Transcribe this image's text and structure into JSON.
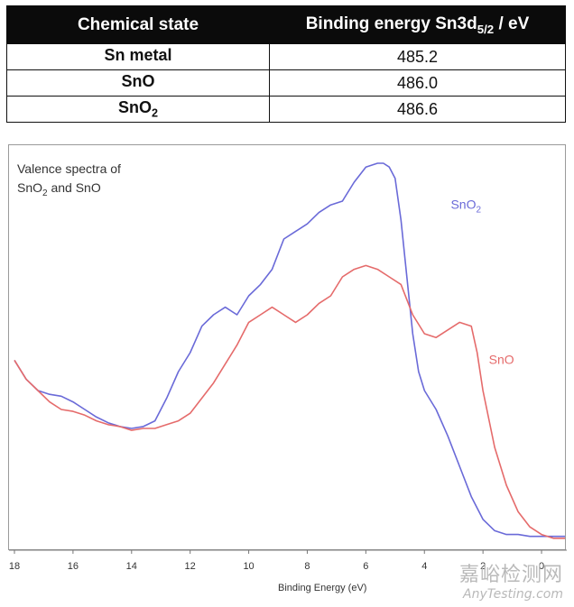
{
  "table": {
    "header_state": "Chemical state",
    "header_energy_prefix": "Binding energy Sn3d",
    "header_energy_sub": "5/2",
    "header_energy_suffix": " / eV",
    "rows": [
      {
        "state": "Sn metal",
        "state_sub": "",
        "energy": "485.2"
      },
      {
        "state": "SnO",
        "state_sub": "",
        "energy": "486.0"
      },
      {
        "state": "SnO",
        "state_sub": "2",
        "energy": "486.6"
      }
    ]
  },
  "chart_data": {
    "type": "line",
    "title_line1": "Valence spectra of",
    "title_line2_a": "SnO",
    "title_line2_sub": "2",
    "title_line2_b": " and SnO",
    "xlabel": "Binding Energy (eV)",
    "xlim": [
      18,
      -0.8
    ],
    "ylim": [
      0,
      1
    ],
    "x_ticks": [
      18,
      16,
      14,
      12,
      10,
      8,
      6,
      4,
      2,
      0
    ],
    "x_tick_labels": [
      "18",
      "16",
      "14",
      "12",
      "10",
      "8",
      "6",
      "4",
      "2",
      "0"
    ],
    "series": [
      {
        "name": "SnO2",
        "label_main": "SnO",
        "label_sub": "2",
        "label_x": 3.1,
        "label_y": 0.88,
        "color": "#6a6ad8",
        "x": [
          18,
          17.6,
          17.2,
          16.8,
          16.4,
          16,
          15.6,
          15.2,
          14.8,
          14.4,
          14,
          13.6,
          13.2,
          12.8,
          12.4,
          12,
          11.6,
          11.2,
          10.8,
          10.4,
          10,
          9.6,
          9.2,
          8.8,
          8.4,
          8,
          7.6,
          7.2,
          6.8,
          6.4,
          6,
          5.6,
          5.4,
          5.2,
          5,
          4.8,
          4.6,
          4.4,
          4.2,
          4,
          3.6,
          3.2,
          2.8,
          2.4,
          2,
          1.6,
          1.2,
          0.8,
          0.4,
          0,
          -0.4,
          -0.8
        ],
        "y": [
          0.48,
          0.43,
          0.4,
          0.39,
          0.385,
          0.37,
          0.35,
          0.33,
          0.315,
          0.305,
          0.3,
          0.305,
          0.32,
          0.38,
          0.45,
          0.5,
          0.57,
          0.6,
          0.62,
          0.6,
          0.65,
          0.68,
          0.72,
          0.8,
          0.82,
          0.84,
          0.87,
          0.89,
          0.9,
          0.95,
          0.99,
          1.0,
          1.0,
          0.99,
          0.96,
          0.85,
          0.7,
          0.55,
          0.45,
          0.4,
          0.35,
          0.28,
          0.2,
          0.12,
          0.06,
          0.03,
          0.02,
          0.02,
          0.015,
          0.015,
          0.015,
          0.015
        ]
      },
      {
        "name": "SnO",
        "label_main": "SnO",
        "label_sub": "",
        "label_x": 1.8,
        "label_y": 0.47,
        "color": "#e56b6b",
        "x": [
          18,
          17.6,
          17.2,
          16.8,
          16.4,
          16,
          15.6,
          15.2,
          14.8,
          14.4,
          14,
          13.6,
          13.2,
          12.8,
          12.4,
          12,
          11.6,
          11.2,
          10.8,
          10.4,
          10,
          9.6,
          9.2,
          8.8,
          8.4,
          8,
          7.6,
          7.2,
          6.8,
          6.4,
          6,
          5.6,
          5.2,
          4.8,
          4.4,
          4,
          3.6,
          3.2,
          2.8,
          2.4,
          2.2,
          2,
          1.6,
          1.2,
          0.8,
          0.4,
          0,
          -0.4,
          -0.8
        ],
        "y": [
          0.48,
          0.43,
          0.4,
          0.37,
          0.35,
          0.345,
          0.335,
          0.32,
          0.31,
          0.305,
          0.295,
          0.3,
          0.3,
          0.31,
          0.32,
          0.34,
          0.38,
          0.42,
          0.47,
          0.52,
          0.58,
          0.6,
          0.62,
          0.6,
          0.58,
          0.6,
          0.63,
          0.65,
          0.7,
          0.72,
          0.73,
          0.72,
          0.7,
          0.68,
          0.6,
          0.55,
          0.54,
          0.56,
          0.58,
          0.57,
          0.5,
          0.4,
          0.25,
          0.15,
          0.08,
          0.04,
          0.02,
          0.01,
          0.01
        ]
      }
    ]
  },
  "watermark": {
    "cn": "嘉峪检测网",
    "en": "AnyTesting.com"
  }
}
